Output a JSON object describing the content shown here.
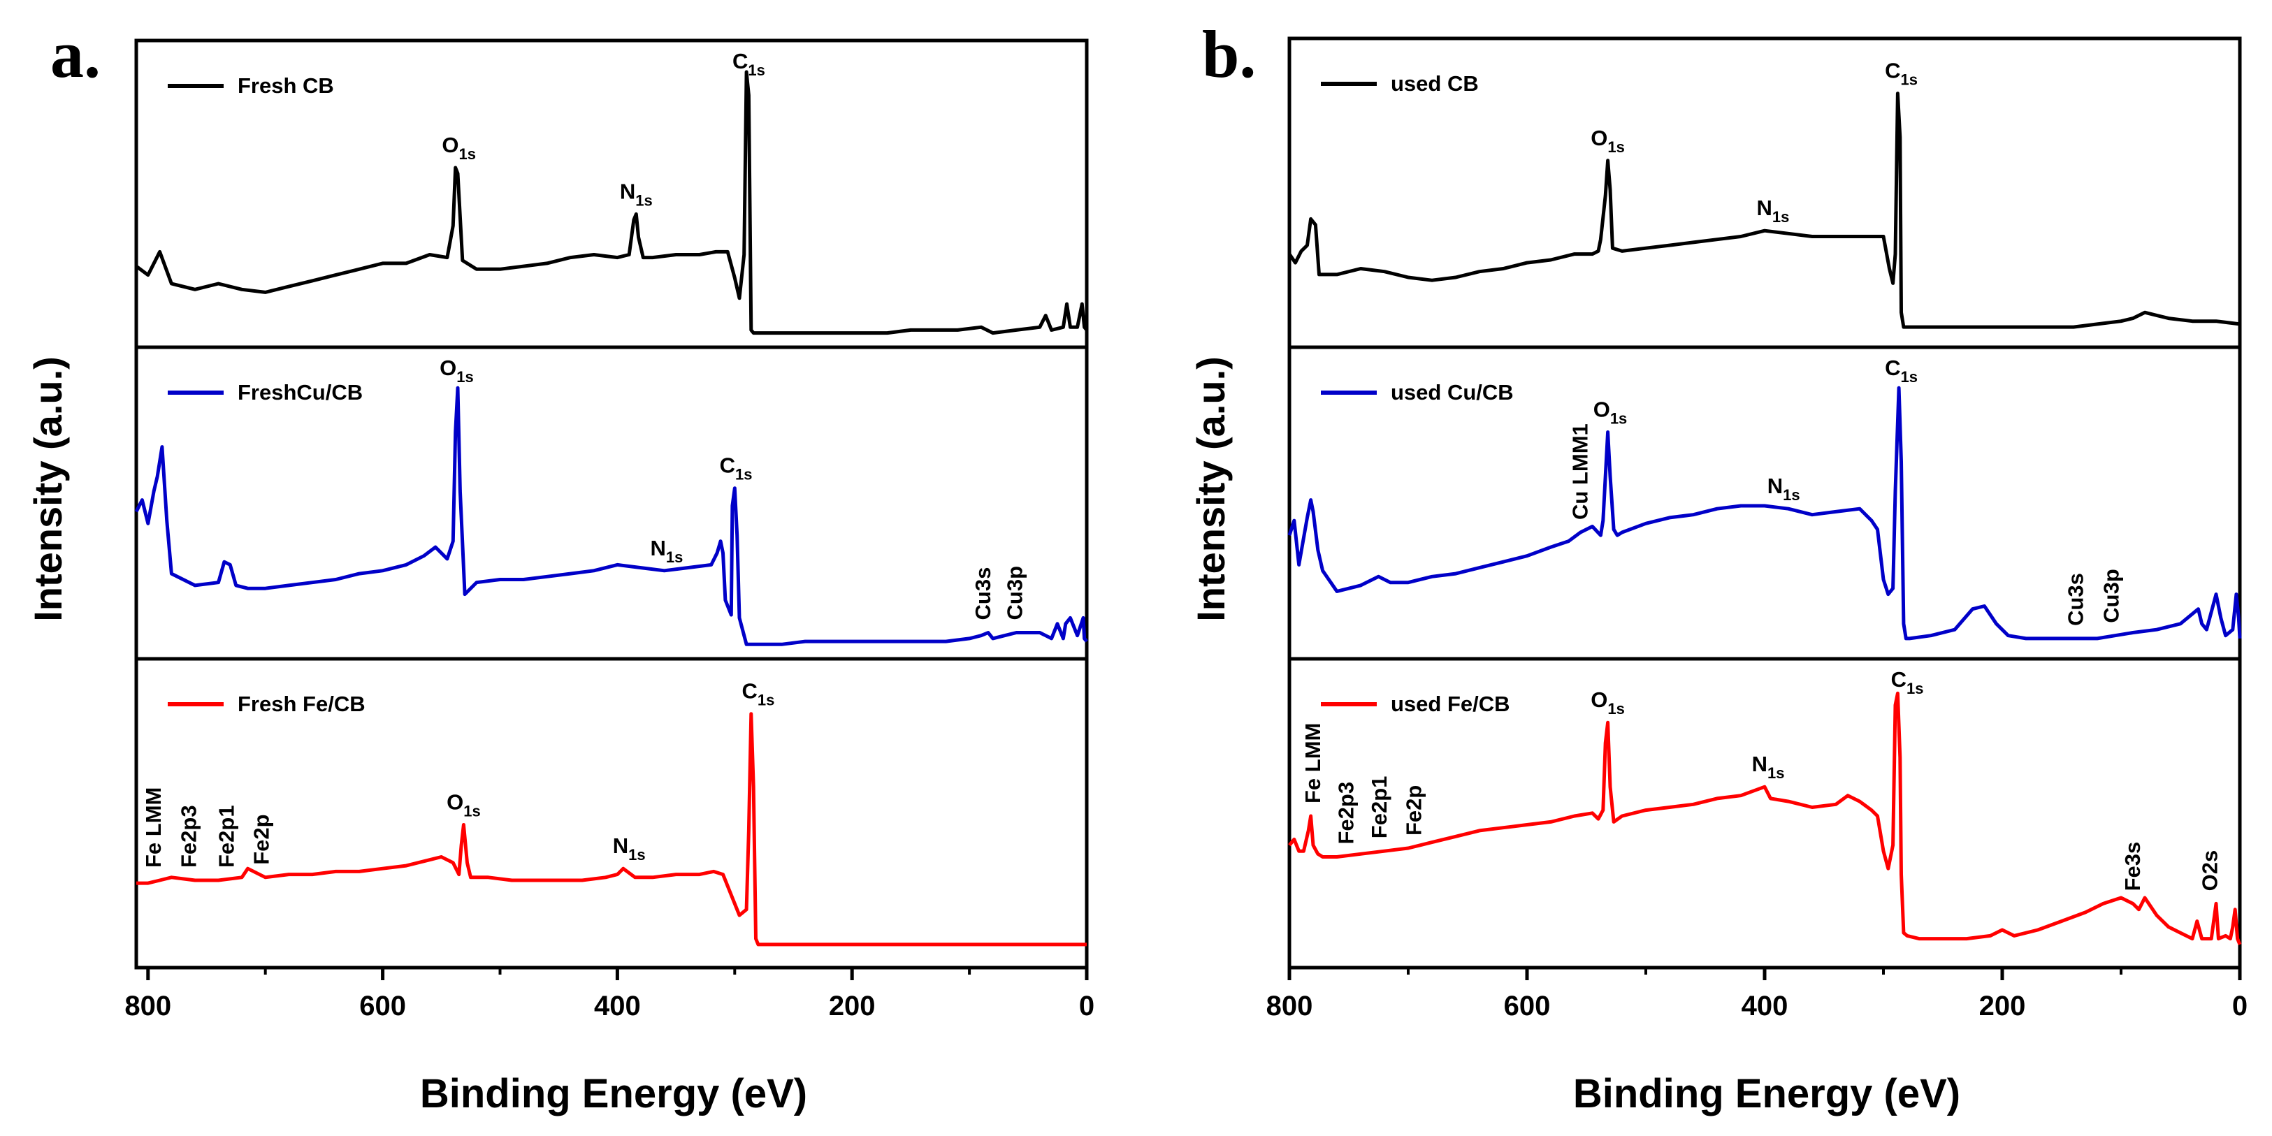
{
  "chart_data": [
    {
      "type": "line",
      "panel_label": "a.",
      "xlabel": "Binding Energy (eV)",
      "ylabel": "Intensity (a.u.)",
      "xlim": [
        810,
        0
      ],
      "xticks": [
        "800",
        "600",
        "400",
        "200",
        "0"
      ],
      "xtick_values": [
        800,
        600,
        400,
        200,
        0
      ],
      "subplots": [
        {
          "name": "Fresh CB",
          "legend": "Fresh CB",
          "color": "#000000",
          "ylim": [
            0,
            100
          ],
          "x": [
            810,
            800,
            790,
            780,
            760,
            740,
            720,
            700,
            680,
            660,
            640,
            620,
            600,
            580,
            560,
            545,
            540,
            538,
            536,
            532,
            520,
            500,
            480,
            460,
            440,
            420,
            400,
            390,
            386,
            384,
            382,
            378,
            370,
            350,
            330,
            316,
            306,
            300,
            296,
            292,
            290,
            288,
            286,
            284,
            282,
            270,
            250,
            230,
            210,
            190,
            170,
            150,
            130,
            110,
            90,
            80,
            60,
            40,
            35,
            30,
            20,
            17,
            14,
            8,
            4,
            2,
            0
          ],
          "y": [
            26,
            23,
            31,
            20,
            18,
            20,
            18,
            17,
            19,
            21,
            23,
            25,
            27,
            27,
            30,
            29,
            40,
            60,
            58,
            28,
            25,
            25,
            26,
            27,
            29,
            30,
            29,
            30,
            42,
            44,
            36,
            29,
            29,
            30,
            30,
            31,
            31,
            22,
            15,
            30,
            93,
            85,
            4,
            3,
            3,
            3,
            3,
            3,
            3,
            3,
            3,
            4,
            4,
            4,
            5,
            3,
            4,
            5,
            9,
            4,
            5,
            13,
            5,
            5,
            13,
            5,
            4
          ],
          "annotations": [
            {
              "base": "O",
              "sub": "1s",
              "x": 535
            },
            {
              "base": "N",
              "sub": "1s",
              "x": 384
            },
            {
              "base": "C",
              "sub": "1s",
              "x": 288
            }
          ]
        },
        {
          "name": "FreshCu/CB",
          "legend": "FreshCu/CB",
          "color": "#0000c8",
          "ylim": [
            0,
            100
          ],
          "x": [
            810,
            805,
            800,
            795,
            792,
            788,
            784,
            780,
            760,
            740,
            735,
            730,
            725,
            715,
            700,
            680,
            660,
            640,
            620,
            600,
            580,
            565,
            555,
            545,
            540,
            538,
            536,
            534,
            530,
            520,
            500,
            480,
            460,
            440,
            420,
            400,
            380,
            360,
            340,
            320,
            315,
            312,
            310,
            308,
            303,
            302,
            300,
            298,
            296,
            290,
            280,
            260,
            240,
            220,
            200,
            180,
            160,
            140,
            120,
            100,
            90,
            84,
            80,
            70,
            60,
            40,
            35,
            30,
            25,
            20,
            18,
            14,
            8,
            3,
            2,
            0
          ],
          "y": [
            48,
            52,
            44,
            55,
            60,
            70,
            45,
            27,
            23,
            24,
            31,
            30,
            23,
            22,
            22,
            23,
            24,
            25,
            27,
            28,
            30,
            33,
            36,
            32,
            38,
            75,
            90,
            55,
            20,
            24,
            25,
            25,
            26,
            27,
            28,
            30,
            29,
            28,
            29,
            30,
            34,
            38,
            34,
            18,
            13,
            50,
            56,
            40,
            12,
            3,
            3,
            3,
            4,
            4,
            4,
            4,
            4,
            4,
            4,
            5,
            6,
            7,
            5,
            6,
            7,
            7,
            6,
            5,
            10,
            5,
            10,
            12,
            6,
            12,
            5,
            4
          ],
          "annotations": [
            {
              "base": "O",
              "sub": "1s",
              "x": 537
            },
            {
              "base": "N",
              "sub": "1s",
              "x": 358
            },
            {
              "base": "C",
              "sub": "1s",
              "x": 299
            },
            {
              "text": "Cu3s",
              "x": 88,
              "vertical": true
            },
            {
              "text": "Cu3p",
              "x": 61,
              "vertical": true
            }
          ]
        },
        {
          "name": "Fresh Fe/CB",
          "legend": "Fresh Fe/CB",
          "color": "#ff0000",
          "ylim": [
            0,
            100
          ],
          "x": [
            810,
            800,
            790,
            780,
            760,
            740,
            720,
            715,
            700,
            680,
            660,
            640,
            620,
            600,
            580,
            560,
            550,
            540,
            535,
            533,
            531,
            528,
            525,
            510,
            490,
            470,
            450,
            430,
            410,
            400,
            395,
            385,
            370,
            350,
            330,
            318,
            310,
            305,
            300,
            296,
            290,
            288,
            286,
            284,
            282,
            280,
            270,
            250,
            230,
            210,
            190,
            170,
            150,
            130,
            110,
            90,
            70,
            50,
            30,
            10,
            0
          ],
          "y": [
            27,
            27,
            28,
            29,
            28,
            28,
            29,
            32,
            29,
            30,
            30,
            31,
            31,
            32,
            33,
            35,
            36,
            34,
            30,
            40,
            47,
            34,
            29,
            29,
            28,
            28,
            28,
            28,
            29,
            30,
            32,
            29,
            29,
            30,
            30,
            31,
            30,
            25,
            20,
            16,
            18,
            45,
            85,
            60,
            8,
            6,
            6,
            6,
            6,
            6,
            6,
            6,
            6,
            6,
            6,
            6,
            6,
            6,
            6,
            6,
            6
          ],
          "annotations": [
            {
              "base": "O",
              "sub": "1s",
              "x": 531
            },
            {
              "base": "N",
              "sub": "1s",
              "x": 390
            },
            {
              "base": "C",
              "sub": "1s",
              "x": 280
            },
            {
              "text": "Fe LMM",
              "x": 795,
              "vertical": true
            },
            {
              "text": "Fe2p3",
              "x": 765,
              "vertical": true
            },
            {
              "text": "Fe2p1",
              "x": 733,
              "vertical": true
            },
            {
              "text": "Fe2p",
              "x": 703,
              "vertical": true
            }
          ]
        }
      ]
    },
    {
      "type": "line",
      "panel_label": "b.",
      "xlabel": "Binding Energy (eV)",
      "ylabel": "Intensity (a.u.)",
      "xlim": [
        800,
        0
      ],
      "xticks": [
        "800",
        "600",
        "400",
        "200",
        "0"
      ],
      "xtick_values": [
        800,
        600,
        400,
        200,
        0
      ],
      "subplots": [
        {
          "name": "used CB",
          "legend": "used CB",
          "color": "#000000",
          "ylim": [
            0,
            100
          ],
          "x": [
            800,
            795,
            790,
            785,
            782,
            778,
            775,
            760,
            740,
            720,
            700,
            680,
            660,
            640,
            620,
            600,
            580,
            560,
            545,
            540,
            538,
            534,
            532,
            530,
            528,
            520,
            500,
            480,
            460,
            440,
            420,
            400,
            380,
            360,
            340,
            320,
            310,
            300,
            295,
            292,
            290,
            288,
            286,
            285,
            283,
            280,
            260,
            240,
            220,
            200,
            180,
            160,
            140,
            120,
            100,
            90,
            80,
            70,
            60,
            40,
            20,
            0
          ],
          "y": [
            30,
            27,
            31,
            33,
            42,
            40,
            23,
            23,
            25,
            24,
            22,
            21,
            22,
            24,
            25,
            27,
            28,
            30,
            30,
            31,
            35,
            50,
            62,
            52,
            32,
            31,
            32,
            33,
            34,
            35,
            36,
            38,
            37,
            36,
            36,
            36,
            36,
            36,
            25,
            20,
            30,
            85,
            70,
            10,
            5,
            5,
            5,
            5,
            5,
            5,
            5,
            5,
            5,
            6,
            7,
            8,
            10,
            9,
            8,
            7,
            7,
            6
          ],
          "annotations": [
            {
              "base": "O",
              "sub": "1s",
              "x": 532
            },
            {
              "base": "N",
              "sub": "1s",
              "x": 393
            },
            {
              "base": "C",
              "sub": "1s",
              "x": 285
            }
          ]
        },
        {
          "name": "used Cu/CB",
          "legend": "used Cu/CB",
          "color": "#0000c8",
          "ylim": [
            0,
            100
          ],
          "x": [
            800,
            796,
            792,
            785,
            782,
            780,
            776,
            772,
            760,
            740,
            725,
            715,
            700,
            680,
            660,
            640,
            620,
            600,
            580,
            565,
            555,
            545,
            538,
            536,
            534,
            532,
            530,
            527,
            524,
            520,
            500,
            480,
            460,
            440,
            420,
            400,
            380,
            360,
            340,
            320,
            310,
            305,
            300,
            296,
            292,
            290,
            287,
            285,
            283,
            281,
            278,
            260,
            240,
            225,
            215,
            205,
            195,
            180,
            160,
            140,
            120,
            105,
            90,
            70,
            50,
            35,
            32,
            28,
            20,
            16,
            12,
            6,
            3,
            1,
            0
          ],
          "y": [
            40,
            45,
            30,
            46,
            52,
            48,
            35,
            28,
            21,
            23,
            26,
            24,
            24,
            26,
            27,
            29,
            31,
            33,
            36,
            38,
            41,
            43,
            40,
            45,
            60,
            75,
            60,
            42,
            40,
            41,
            44,
            46,
            47,
            49,
            50,
            50,
            49,
            47,
            48,
            49,
            45,
            42,
            25,
            20,
            22,
            55,
            90,
            65,
            10,
            5,
            5,
            6,
            8,
            15,
            16,
            10,
            6,
            5,
            5,
            5,
            5,
            6,
            7,
            8,
            10,
            15,
            10,
            8,
            20,
            12,
            6,
            8,
            20,
            12,
            5
          ],
          "annotations": [
            {
              "text": "Cu LMM1",
              "x": 555,
              "vertical": true
            },
            {
              "base": "O",
              "sub": "1s",
              "x": 530
            },
            {
              "base": "N",
              "sub": "1s",
              "x": 384
            },
            {
              "base": "C",
              "sub": "1s",
              "x": 285
            },
            {
              "text": "Cu3s",
              "x": 138,
              "vertical": true
            },
            {
              "text": "Cu3p",
              "x": 108,
              "vertical": true
            }
          ]
        },
        {
          "name": "used Fe/CB",
          "legend": "used Fe/CB",
          "color": "#ff0000",
          "ylim": [
            0,
            100
          ],
          "x": [
            800,
            796,
            792,
            788,
            784,
            782,
            780,
            776,
            772,
            760,
            740,
            720,
            700,
            680,
            660,
            640,
            620,
            600,
            580,
            560,
            545,
            540,
            536,
            534,
            532,
            530,
            527,
            520,
            500,
            480,
            460,
            440,
            420,
            400,
            395,
            380,
            360,
            340,
            330,
            320,
            310,
            305,
            300,
            296,
            292,
            290,
            288,
            286,
            285,
            283,
            280,
            270,
            250,
            230,
            210,
            200,
            190,
            170,
            150,
            130,
            115,
            100,
            90,
            85,
            80,
            70,
            60,
            50,
            40,
            36,
            32,
            24,
            20,
            18,
            12,
            8,
            6,
            4,
            2,
            0
          ],
          "y": [
            40,
            42,
            38,
            38,
            45,
            50,
            40,
            37,
            36,
            36,
            37,
            38,
            39,
            41,
            43,
            45,
            46,
            47,
            48,
            50,
            51,
            49,
            52,
            75,
            82,
            60,
            48,
            50,
            52,
            53,
            54,
            56,
            57,
            60,
            56,
            55,
            53,
            54,
            57,
            55,
            52,
            50,
            38,
            32,
            40,
            88,
            92,
            70,
            30,
            10,
            9,
            8,
            8,
            8,
            9,
            11,
            9,
            11,
            14,
            17,
            20,
            22,
            20,
            18,
            22,
            16,
            12,
            10,
            8,
            14,
            8,
            8,
            20,
            8,
            9,
            8,
            12,
            18,
            8,
            6
          ],
          "annotations": [
            {
              "base": "O",
              "sub": "1s",
              "x": 532
            },
            {
              "base": "N",
              "sub": "1s",
              "x": 397
            },
            {
              "base": "C",
              "sub": "1s",
              "x": 280
            },
            {
              "text": "Fe LMM",
              "x": 780,
              "vertical": true
            },
            {
              "text": "Fe2p3",
              "x": 752,
              "vertical": true
            },
            {
              "text": "Fe2p1",
              "x": 724,
              "vertical": true
            },
            {
              "text": "Fe2p",
              "x": 695,
              "vertical": true
            },
            {
              "text": "Fe3s",
              "x": 90,
              "vertical": true
            },
            {
              "text": "O2s",
              "x": 25,
              "vertical": true
            }
          ]
        }
      ]
    }
  ]
}
